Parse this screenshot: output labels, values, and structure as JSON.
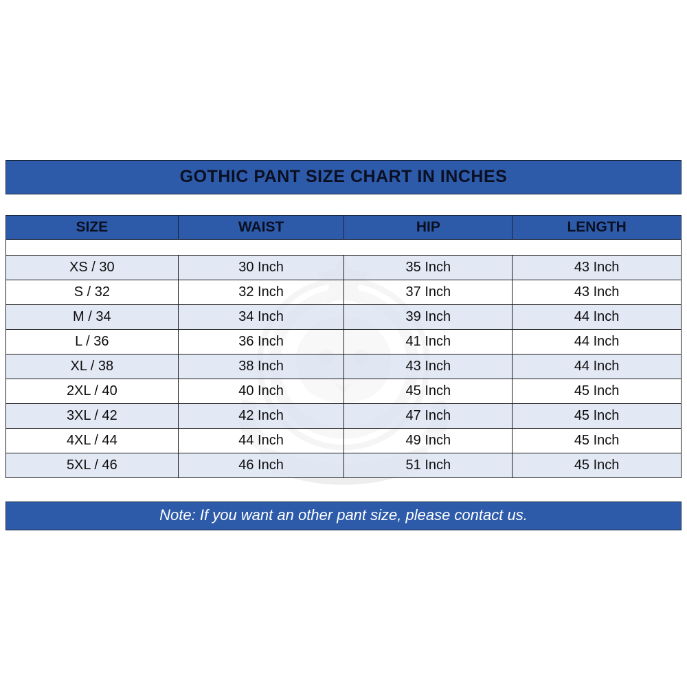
{
  "title": "GOTHIC PANT SIZE CHART IN INCHES",
  "note": "Note: If you want an other pant size, please contact us.",
  "colors": {
    "band_blue": "#2d5ba9",
    "row_alt": "#dde4f2",
    "border_dark": "#1a1a1a",
    "title_text": "#0a0f22",
    "note_text": "#ffffff"
  },
  "chart_data": {
    "type": "table",
    "title": "GOTHIC PANT SIZE CHART IN INCHES",
    "columns": [
      "SIZE",
      "WAIST",
      "HIP",
      "LENGTH"
    ],
    "rows": [
      [
        "XS / 30",
        "30 Inch",
        "35 Inch",
        "43 Inch"
      ],
      [
        "S / 32",
        "32 Inch",
        "37 Inch",
        "43 Inch"
      ],
      [
        "M / 34",
        "34 Inch",
        "39 Inch",
        "44 Inch"
      ],
      [
        "L / 36",
        "36 Inch",
        "41 Inch",
        "44 Inch"
      ],
      [
        "XL / 38",
        "38 Inch",
        "43 Inch",
        "44 Inch"
      ],
      [
        "2XL / 40",
        "40 Inch",
        "45 Inch",
        "45 Inch"
      ],
      [
        "3XL / 42",
        "42 Inch",
        "47 Inch",
        "45 Inch"
      ],
      [
        "4XL / 44",
        "44 Inch",
        "49 Inch",
        "45 Inch"
      ],
      [
        "5XL / 46",
        "46 Inch",
        "51 Inch",
        "45 Inch"
      ]
    ],
    "footnote": "Note: If you want an other pant size, please contact us."
  }
}
